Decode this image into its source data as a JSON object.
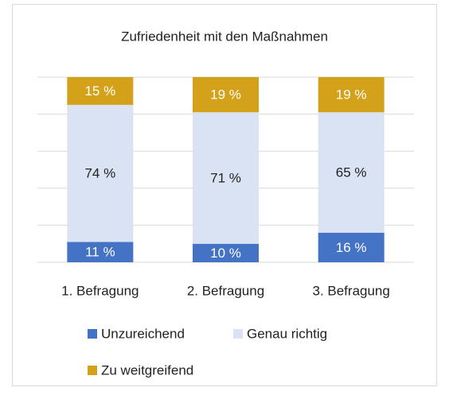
{
  "chart_data": {
    "type": "stacked_bar",
    "title": "Zufriedenheit mit den Maßnahmen",
    "categories": [
      "1. Befragung",
      "2. Befragung",
      "3. Befragung"
    ],
    "series": [
      {
        "name": "Unzureichend",
        "color": "#4472c4",
        "values": [
          11,
          10,
          16
        ],
        "value_labels": [
          "11 %",
          "10 %",
          "16 %"
        ]
      },
      {
        "name": "Genau richtig",
        "color": "#dae3f3",
        "values": [
          74,
          71,
          65
        ],
        "value_labels": [
          "74 %",
          "71 %",
          "65 %"
        ]
      },
      {
        "name": "Zu weitgreifend",
        "color": "#d4a21a",
        "values": [
          15,
          19,
          19
        ],
        "value_labels": [
          "15 %",
          "19 %",
          "19 %"
        ]
      }
    ],
    "ylim": [
      0,
      100
    ],
    "yticks": [
      0,
      20,
      40,
      60,
      80,
      100
    ],
    "grid": true,
    "legend": "bottom"
  }
}
